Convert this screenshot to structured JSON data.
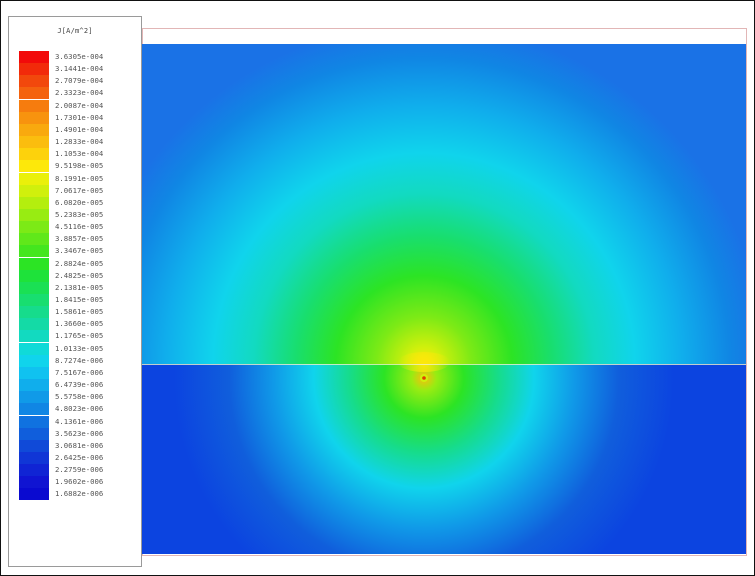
{
  "legend": {
    "title": "J[A/m^2]",
    "entries": [
      {
        "value": "3.6305e-004",
        "color": "#f20a0a"
      },
      {
        "value": "3.1441e-004",
        "color": "#f22a0a"
      },
      {
        "value": "2.7079e-004",
        "color": "#f2480c"
      },
      {
        "value": "2.3323e-004",
        "color": "#f4620e"
      },
      {
        "value": "2.0087e-004",
        "color": "#f67c0e"
      },
      {
        "value": "1.7301e-004",
        "color": "#f8930e"
      },
      {
        "value": "1.4901e-004",
        "color": "#f9a90e"
      },
      {
        "value": "1.2833e-004",
        "color": "#fbbd0e"
      },
      {
        "value": "1.1053e-004",
        "color": "#fdd20c"
      },
      {
        "value": "9.5198e-005",
        "color": "#fde80a"
      },
      {
        "value": "8.1991e-005",
        "color": "#eaf00a"
      },
      {
        "value": "7.0617e-005",
        "color": "#d0f00c"
      },
      {
        "value": "6.0820e-005",
        "color": "#b4ee0e"
      },
      {
        "value": "5.2383e-005",
        "color": "#98ec12"
      },
      {
        "value": "4.5116e-005",
        "color": "#7cea16"
      },
      {
        "value": "3.8857e-005",
        "color": "#60e81a"
      },
      {
        "value": "3.3467e-005",
        "color": "#44e61e"
      },
      {
        "value": "2.8824e-005",
        "color": "#2ce424"
      },
      {
        "value": "2.4825e-005",
        "color": "#1ee23a"
      },
      {
        "value": "2.1381e-005",
        "color": "#1ae054"
      },
      {
        "value": "1.8415e-005",
        "color": "#18de70"
      },
      {
        "value": "1.5861e-005",
        "color": "#16dc8c"
      },
      {
        "value": "1.3660e-005",
        "color": "#14daa6"
      },
      {
        "value": "1.1765e-005",
        "color": "#12dac0"
      },
      {
        "value": "1.0133e-005",
        "color": "#10dad8"
      },
      {
        "value": "8.7274e-006",
        "color": "#10d4ec"
      },
      {
        "value": "7.5167e-006",
        "color": "#10c2f0"
      },
      {
        "value": "6.4739e-006",
        "color": "#10aeec"
      },
      {
        "value": "5.5758e-006",
        "color": "#109ae8"
      },
      {
        "value": "4.8023e-006",
        "color": "#1086e4"
      },
      {
        "value": "4.1361e-006",
        "color": "#1072e0"
      },
      {
        "value": "3.5623e-006",
        "color": "#105edc"
      },
      {
        "value": "3.0681e-006",
        "color": "#104ad8"
      },
      {
        "value": "2.6425e-006",
        "color": "#1036d6"
      },
      {
        "value": "2.2759e-006",
        "color": "#1024d4"
      },
      {
        "value": "1.9602e-006",
        "color": "#1014d2"
      },
      {
        "value": "1.6882e-006",
        "color": "#0a0ad0"
      }
    ]
  },
  "colors": {
    "upper_background": "#1a72e6",
    "lower_background": "#0c44e0",
    "interface_line": "#f0f0c8",
    "source_center": "#e04000"
  }
}
